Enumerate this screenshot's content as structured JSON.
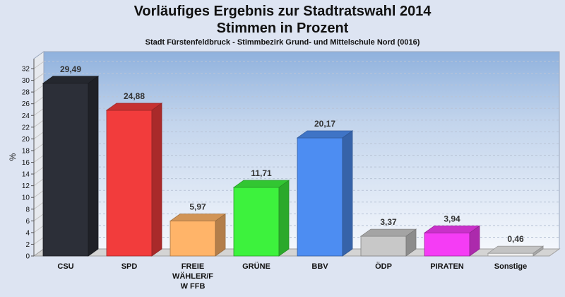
{
  "chart_data": {
    "type": "bar",
    "title_line1": "Vorläufiges Ergebnis zur Stadtratswahl 2014",
    "title_line2": "Stimmen in Prozent",
    "subtitle": "Stadt Fürstenfeldbruck - Stimmbezirk Grund- und Mittelschule Nord (0016)",
    "ylabel": "%",
    "xlabel": "",
    "ylim": [
      0,
      32
    ],
    "yticks": [
      "0",
      "2",
      "4",
      "6",
      "8",
      "10",
      "12",
      "14",
      "16",
      "18",
      "20",
      "22",
      "24",
      "26",
      "28",
      "30",
      "32"
    ],
    "grid": true,
    "legend": "none",
    "categories": [
      {
        "name": "CSU",
        "lines": [
          "CSU"
        ],
        "value": 29.49,
        "label": "29,49",
        "color": "#2c2f38"
      },
      {
        "name": "SPD",
        "lines": [
          "SPD"
        ],
        "value": 24.88,
        "label": "24,88",
        "color": "#f23c3c"
      },
      {
        "name": "FREIE WÄHLER/FW FFB",
        "lines": [
          "FREIE",
          "WÄHLER/F",
          "W FFB"
        ],
        "value": 5.97,
        "label": "5,97",
        "color": "#ffb469"
      },
      {
        "name": "GRÜNE",
        "lines": [
          "GRÜNE"
        ],
        "value": 11.71,
        "label": "11,71",
        "color": "#3df23d"
      },
      {
        "name": "BBV",
        "lines": [
          "BBV"
        ],
        "value": 20.17,
        "label": "20,17",
        "color": "#4d8df2"
      },
      {
        "name": "ÖDP",
        "lines": [
          "ÖDP"
        ],
        "value": 3.37,
        "label": "3,37",
        "color": "#c8c8c8"
      },
      {
        "name": "PIRATEN",
        "lines": [
          "PIRATEN"
        ],
        "value": 3.94,
        "label": "3,94",
        "color": "#f53cf5"
      },
      {
        "name": "Sonstige",
        "lines": [
          "Sonstige"
        ],
        "value": 0.46,
        "label": "0,46",
        "color": "#eeeeee"
      }
    ]
  }
}
